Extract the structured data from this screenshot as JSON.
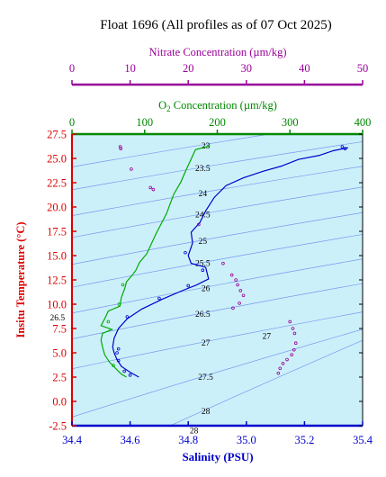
{
  "chart_data": {
    "type": "scatter",
    "title": "Float 1696  (All profiles as of 07 Oct 2025)",
    "xlabel": "Salinity (PSU)",
    "ylabel": "Insitu Temperature (°C)",
    "xlim": [
      34.4,
      35.4
    ],
    "ylim": [
      -2.5,
      27.5
    ],
    "x_ticks": [
      "34.4",
      "34.6",
      "34.8",
      "35.0",
      "35.2",
      "35.4"
    ],
    "y_ticks": [
      "-2.5",
      "0.0",
      "2.5",
      "5.0",
      "7.5",
      "10.0",
      "12.5",
      "15.0",
      "17.5",
      "20.0",
      "22.5",
      "25.0",
      "27.5"
    ],
    "grid": false,
    "o2_axis": {
      "label_pre": "O",
      "label_sub": "2",
      "label_post": " Concentration (µm/kg)",
      "range": [
        0,
        400
      ],
      "ticks": [
        "0",
        "100",
        "200",
        "300",
        "400"
      ]
    },
    "nitrate_axis": {
      "label": "Nitrate Concentration (µm/kg)",
      "range": [
        0,
        50
      ],
      "ticks": [
        "0",
        "10",
        "20",
        "30",
        "40",
        "50"
      ]
    },
    "density_contours": [
      {
        "label": "23",
        "x": 34.86,
        "y": 26.3
      },
      {
        "label": "23.5",
        "x": 34.85,
        "y": 24.0
      },
      {
        "label": "24",
        "x": 34.85,
        "y": 21.4
      },
      {
        "label": "24.5",
        "x": 34.85,
        "y": 19.2
      },
      {
        "label": "25",
        "x": 34.85,
        "y": 16.5
      },
      {
        "label": "25.5",
        "x": 34.85,
        "y": 14.2
      },
      {
        "label": "26",
        "x": 34.86,
        "y": 11.6
      },
      {
        "label": "26.5",
        "x": 34.35,
        "y": 8.6
      },
      {
        "label": "26.5",
        "x": 34.85,
        "y": 9.0
      },
      {
        "label": "27",
        "x": 34.86,
        "y": 6.0
      },
      {
        "label": "27",
        "x": 35.07,
        "y": 6.7
      },
      {
        "label": "27.5",
        "x": 34.86,
        "y": 2.5
      },
      {
        "label": "28",
        "x": 34.86,
        "y": -1.0
      },
      {
        "label": "28",
        "x": 34.82,
        "y": -3.0
      }
    ],
    "series": [
      {
        "key": "salinity",
        "color": "#0000cc",
        "points": [
          [
            35.35,
            26.1
          ],
          [
            35.3,
            25.8
          ],
          [
            35.25,
            25.3
          ],
          [
            35.18,
            24.9
          ],
          [
            35.12,
            24.2
          ],
          [
            35.06,
            23.7
          ],
          [
            34.99,
            23.0
          ],
          [
            34.93,
            22.2
          ],
          [
            34.89,
            21.0
          ],
          [
            34.86,
            19.6
          ],
          [
            34.84,
            18.4
          ],
          [
            34.81,
            17.4
          ],
          [
            34.815,
            16.3
          ],
          [
            34.8,
            15.0
          ],
          [
            34.81,
            14.2
          ],
          [
            34.86,
            13.8
          ],
          [
            34.87,
            12.6
          ],
          [
            34.83,
            12.0
          ],
          [
            34.78,
            11.4
          ],
          [
            34.71,
            10.5
          ],
          [
            34.64,
            9.5
          ],
          [
            34.59,
            8.5
          ],
          [
            34.56,
            7.5
          ],
          [
            34.545,
            6.5
          ],
          [
            34.54,
            5.6
          ],
          [
            34.545,
            5.0
          ],
          [
            34.555,
            4.3
          ],
          [
            34.57,
            3.6
          ],
          [
            34.6,
            3.0
          ],
          [
            34.63,
            2.5
          ]
        ],
        "markers": [
          [
            34.6,
            2.7
          ],
          [
            34.58,
            3.1
          ],
          [
            34.56,
            4.2
          ],
          [
            34.555,
            5.0
          ],
          [
            34.56,
            5.4
          ],
          [
            34.79,
            15.3
          ],
          [
            34.85,
            13.5
          ],
          [
            34.8,
            11.9
          ],
          [
            34.7,
            10.6
          ],
          [
            34.59,
            8.7
          ],
          [
            35.33,
            26.2
          ],
          [
            35.34,
            26.0
          ]
        ]
      },
      {
        "key": "oxygen",
        "color": "#00aa00",
        "points": [
          [
            190,
            26.3
          ],
          [
            170,
            25.9
          ],
          [
            157,
            23.8
          ],
          [
            150,
            22.6
          ],
          [
            140,
            21.3
          ],
          [
            130,
            19.3
          ],
          [
            116,
            17.3
          ],
          [
            103,
            15.2
          ],
          [
            93,
            14.3
          ],
          [
            88,
            13.5
          ],
          [
            82,
            12.9
          ],
          [
            75,
            12.3
          ],
          [
            73,
            11.7
          ],
          [
            68,
            10.7
          ],
          [
            66,
            9.8
          ],
          [
            50,
            9.3
          ],
          [
            45,
            8.5
          ],
          [
            40,
            7.8
          ],
          [
            55,
            7.4
          ],
          [
            42,
            7.0
          ],
          [
            40,
            6.3
          ],
          [
            42,
            5.6
          ],
          [
            45,
            4.8
          ],
          [
            52,
            4.0
          ],
          [
            60,
            3.4
          ],
          [
            68,
            2.8
          ],
          [
            75,
            2.5
          ]
        ],
        "markers": [
          [
            70,
            12.0
          ],
          [
            65,
            10.0
          ],
          [
            50,
            8.2
          ],
          [
            57,
            3.7
          ]
        ]
      },
      {
        "key": "nitrate",
        "color": "#990099",
        "markers": [
          [
            8.3,
            26.2
          ],
          [
            8.4,
            26.0
          ],
          [
            10.2,
            23.9
          ],
          [
            13.5,
            22.0
          ],
          [
            14.0,
            21.8
          ],
          [
            21.8,
            18.2
          ],
          [
            26.0,
            14.2
          ],
          [
            27.5,
            13.0
          ],
          [
            28.2,
            12.5
          ],
          [
            28.5,
            12.0
          ],
          [
            29.0,
            11.4
          ],
          [
            29.5,
            10.9
          ],
          [
            28.8,
            10.1
          ],
          [
            27.7,
            9.6
          ],
          [
            37.5,
            8.2
          ],
          [
            38.0,
            7.5
          ],
          [
            38.3,
            7.0
          ],
          [
            38.5,
            6.0
          ],
          [
            38.2,
            5.3
          ],
          [
            37.8,
            4.8
          ],
          [
            37.0,
            4.3
          ],
          [
            36.3,
            3.9
          ],
          [
            35.8,
            3.4
          ],
          [
            35.5,
            2.9
          ]
        ]
      }
    ]
  }
}
